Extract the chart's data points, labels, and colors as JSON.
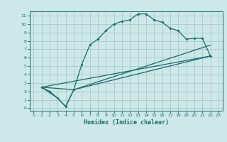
{
  "xlabel": "Humidex (Indice chaleur)",
  "bg_color": "#cce8e8",
  "line_color": "#1a6b6b",
  "grid_color": "#aacaca",
  "xlim": [
    -0.5,
    23.5
  ],
  "ylim": [
    -0.3,
    11.5
  ],
  "xticks": [
    0,
    1,
    2,
    3,
    4,
    5,
    6,
    7,
    8,
    9,
    10,
    11,
    12,
    13,
    14,
    15,
    16,
    17,
    18,
    19,
    20,
    21,
    22,
    23
  ],
  "yticks": [
    0,
    1,
    2,
    3,
    4,
    5,
    6,
    7,
    8,
    9,
    10,
    11
  ],
  "line1_x": [
    1,
    2,
    3,
    4,
    5,
    6,
    7,
    8,
    9,
    10,
    11,
    12,
    13,
    14,
    15,
    16,
    17,
    18,
    19,
    20,
    21,
    22
  ],
  "line1_y": [
    2.5,
    2.0,
    1.2,
    0.2,
    2.2,
    5.2,
    7.5,
    8.2,
    9.2,
    10.0,
    10.3,
    10.5,
    11.2,
    11.2,
    10.5,
    10.2,
    9.5,
    9.2,
    8.2,
    8.3,
    8.3,
    6.2
  ],
  "line2_x": [
    1,
    3,
    4,
    5,
    22
  ],
  "line2_y": [
    2.5,
    1.2,
    0.2,
    2.2,
    7.5
  ],
  "line3_x": [
    1,
    22
  ],
  "line3_y": [
    2.5,
    6.2
  ],
  "line4_x": [
    1,
    5,
    22
  ],
  "line4_y": [
    2.5,
    2.2,
    6.2
  ]
}
